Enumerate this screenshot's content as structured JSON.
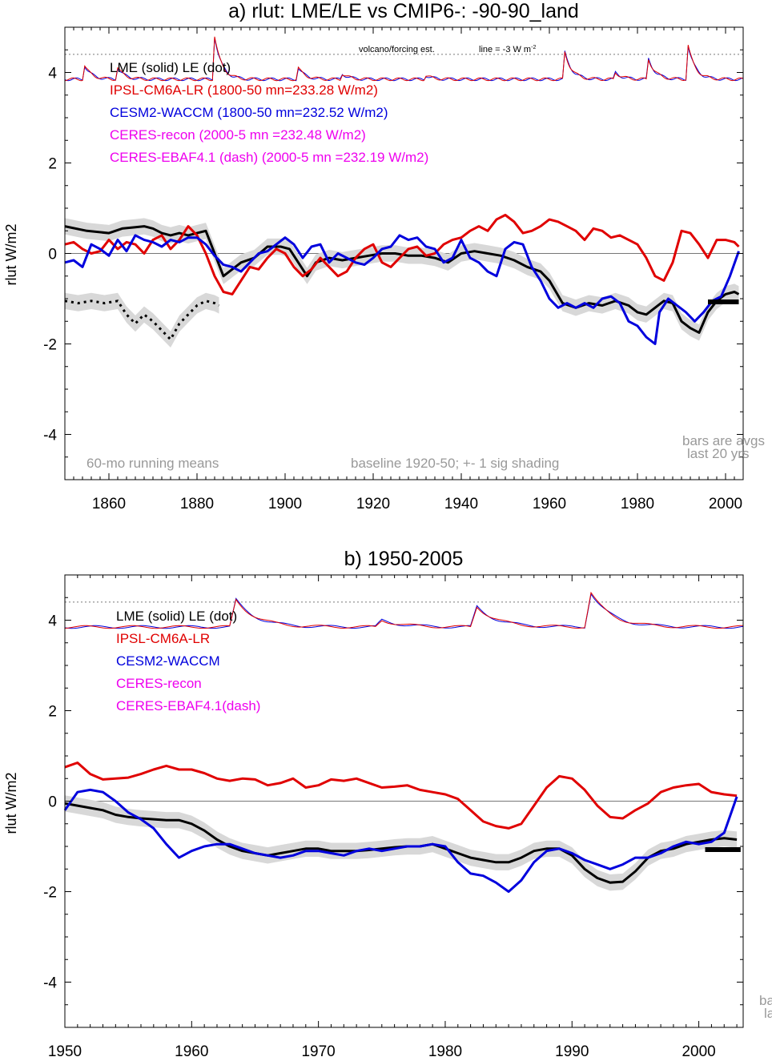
{
  "chart_data": [
    {
      "type": "line",
      "title": "a) rlut: LME/LE vs CMIP6-: -90-90_land",
      "ylabel": "rlut W/m2",
      "xlabel": "",
      "xlim": [
        1850,
        2004
      ],
      "ylim": [
        -5,
        5
      ],
      "xticks": [
        1860,
        1880,
        1900,
        1920,
        1940,
        1960,
        1980,
        2000
      ],
      "yticks": [
        -4,
        -2,
        0,
        2,
        4
      ],
      "legend": [
        {
          "text": "LME (solid)   LE (dot)",
          "color": "#000000"
        },
        {
          "text": "IPSL-CM6A-LR (1800-50 mn=233.28 W/m2)",
          "color": "#e00000"
        },
        {
          "text": "CESM2-WACCM (1800-50 mn=232.52 W/m2)",
          "color": "#0000dd"
        },
        {
          "text": "CERES-recon (2000-5 mn =232.48 W/m2)",
          "color": "#ee00ee"
        },
        {
          "text": "CERES-EBAF4.1 (dash) (2000-5 mn =232.19 W/m2)",
          "color": "#ee00ee"
        }
      ],
      "volcano_label": "volcano/forcing est.",
      "volcano_line_label": "line = -3 W m",
      "volcano_line_sup": "-2",
      "notes": {
        "left": "60-mo running means",
        "center": "baseline 1920-50; +- 1 sig shading",
        "bars1": "bars are avgs",
        "bars2": "last 20 yrs"
      },
      "bar": {
        "x": [
          1996,
          2003
        ],
        "y": -1.07
      },
      "series": [
        {
          "name": "LME (solid)",
          "color": "#000000",
          "x": [
            1850,
            1855,
            1860,
            1863,
            1866,
            1868,
            1870,
            1872,
            1874,
            1876,
            1878,
            1880,
            1882,
            1884,
            1886,
            1888,
            1890,
            1893,
            1896,
            1899,
            1901,
            1903,
            1905,
            1907,
            1910,
            1913,
            1916,
            1919,
            1922,
            1925,
            1928,
            1931,
            1934,
            1937,
            1940,
            1943,
            1946,
            1949,
            1952,
            1955,
            1958,
            1960,
            1963,
            1966,
            1969,
            1972,
            1975,
            1978,
            1980,
            1982,
            1984,
            1986,
            1988,
            1990,
            1992,
            1994,
            1996,
            1998,
            2000,
            2002,
            2003
          ],
          "y": [
            0.6,
            0.5,
            0.45,
            0.55,
            0.58,
            0.6,
            0.55,
            0.45,
            0.4,
            0.45,
            0.4,
            0.45,
            0.5,
            0.0,
            -0.5,
            -0.35,
            -0.2,
            -0.1,
            0.15,
            0.15,
            0.1,
            -0.2,
            -0.5,
            -0.2,
            -0.1,
            -0.15,
            -0.1,
            -0.05,
            0.0,
            0.0,
            -0.05,
            -0.05,
            -0.1,
            -0.2,
            0.0,
            0.05,
            0.0,
            -0.05,
            -0.15,
            -0.3,
            -0.4,
            -0.6,
            -1.1,
            -1.2,
            -1.1,
            -1.15,
            -1.05,
            -1.15,
            -1.3,
            -1.35,
            -1.2,
            -1.05,
            -1.1,
            -1.5,
            -1.65,
            -1.75,
            -1.3,
            -1.05,
            -0.9,
            -0.85,
            -0.9
          ]
        },
        {
          "name": "LE (dot)",
          "color": "#000000",
          "dot": true,
          "x": [
            1850,
            1853,
            1856,
            1859,
            1862,
            1864,
            1866,
            1868,
            1870,
            1872,
            1874,
            1876,
            1878,
            1880,
            1882,
            1884,
            1885
          ],
          "y": [
            -1.05,
            -1.1,
            -1.05,
            -1.1,
            -1.05,
            -1.35,
            -1.55,
            -1.35,
            -1.5,
            -1.7,
            -1.9,
            -1.55,
            -1.35,
            -1.15,
            -1.05,
            -1.1,
            -1.15
          ]
        },
        {
          "name": "IPSL-CM6A-LR",
          "color": "#e00000",
          "x": [
            1850,
            1852,
            1854,
            1856,
            1858,
            1860,
            1862,
            1864,
            1866,
            1868,
            1870,
            1872,
            1874,
            1876,
            1878,
            1880,
            1882,
            1884,
            1886,
            1888,
            1890,
            1892,
            1894,
            1896,
            1898,
            1900,
            1902,
            1904,
            1906,
            1908,
            1910,
            1912,
            1914,
            1916,
            1918,
            1920,
            1922,
            1924,
            1926,
            1928,
            1930,
            1932,
            1934,
            1936,
            1938,
            1940,
            1942,
            1944,
            1946,
            1948,
            1950,
            1952,
            1954,
            1956,
            1958,
            1960,
            1962,
            1964,
            1966,
            1968,
            1970,
            1972,
            1974,
            1976,
            1978,
            1980,
            1982,
            1984,
            1986,
            1988,
            1990,
            1992,
            1994,
            1996,
            1998,
            2000,
            2002,
            2003
          ],
          "y": [
            0.2,
            0.25,
            0.1,
            0.0,
            0.05,
            0.3,
            0.1,
            0.25,
            0.2,
            0.0,
            0.3,
            0.4,
            0.1,
            0.3,
            0.6,
            0.4,
            0.0,
            -0.5,
            -0.85,
            -0.9,
            -0.6,
            -0.3,
            -0.35,
            -0.1,
            0.1,
            0.0,
            -0.3,
            -0.5,
            -0.35,
            -0.1,
            -0.3,
            -0.5,
            -0.4,
            -0.1,
            0.1,
            0.2,
            -0.2,
            -0.3,
            -0.1,
            0.1,
            0.15,
            -0.05,
            0.0,
            0.2,
            0.3,
            0.35,
            0.5,
            0.6,
            0.5,
            0.75,
            0.85,
            0.7,
            0.45,
            0.5,
            0.6,
            0.75,
            0.7,
            0.6,
            0.5,
            0.3,
            0.55,
            0.5,
            0.35,
            0.4,
            0.3,
            0.2,
            -0.1,
            -0.5,
            -0.6,
            -0.2,
            0.5,
            0.45,
            0.2,
            -0.1,
            0.3,
            0.3,
            0.25,
            0.15
          ]
        },
        {
          "name": "CESM2-WACCM",
          "color": "#0000dd",
          "x": [
            1850,
            1852,
            1854,
            1856,
            1858,
            1860,
            1862,
            1864,
            1866,
            1868,
            1870,
            1872,
            1874,
            1876,
            1878,
            1880,
            1882,
            1884,
            1886,
            1888,
            1890,
            1892,
            1894,
            1896,
            1898,
            1900,
            1902,
            1904,
            1906,
            1908,
            1910,
            1912,
            1914,
            1916,
            1918,
            1920,
            1922,
            1924,
            1926,
            1928,
            1930,
            1932,
            1934,
            1936,
            1938,
            1940,
            1942,
            1944,
            1946,
            1948,
            1950,
            1952,
            1954,
            1956,
            1958,
            1960,
            1962,
            1964,
            1966,
            1968,
            1970,
            1972,
            1974,
            1976,
            1978,
            1980,
            1982,
            1984,
            1985,
            1987,
            1989,
            1991,
            1993,
            1995,
            1997,
            1999,
            2001,
            2003
          ],
          "y": [
            -0.2,
            -0.15,
            -0.3,
            0.2,
            0.1,
            -0.05,
            0.3,
            0.05,
            0.4,
            0.3,
            0.25,
            0.15,
            0.3,
            0.25,
            0.35,
            0.35,
            0.2,
            -0.05,
            -0.25,
            -0.3,
            -0.4,
            -0.2,
            0.0,
            0.05,
            0.2,
            0.35,
            0.2,
            -0.1,
            0.15,
            0.2,
            -0.2,
            0.0,
            -0.1,
            -0.2,
            -0.25,
            -0.1,
            0.1,
            0.15,
            0.4,
            0.3,
            0.35,
            0.15,
            0.1,
            -0.2,
            -0.1,
            0.3,
            -0.1,
            -0.2,
            -0.4,
            -0.5,
            0.1,
            0.25,
            0.2,
            -0.3,
            -0.6,
            -1.0,
            -1.2,
            -1.1,
            -1.2,
            -1.1,
            -1.2,
            -1.0,
            -0.95,
            -1.1,
            -1.5,
            -1.6,
            -1.85,
            -2.0,
            -1.3,
            -1.0,
            -1.15,
            -1.3,
            -1.5,
            -1.3,
            -1.05,
            -0.95,
            -0.5,
            0.05
          ]
        }
      ],
      "volcano": [
        {
          "name": "CESM2-WACCM forcing",
          "color": "#0000dd"
        },
        {
          "name": "IPSL-CM6A-LR forcing",
          "color": "#e00000"
        }
      ]
    },
    {
      "type": "line",
      "title": "b) 1950-2005",
      "ylabel": "rlut W/m2",
      "xlabel": "",
      "xlim": [
        1950,
        2003.5
      ],
      "ylim": [
        -5,
        5
      ],
      "xticks": [
        1950,
        1960,
        1970,
        1980,
        1990,
        2000
      ],
      "yticks": [
        -4,
        -2,
        0,
        2,
        4
      ],
      "legend": [
        {
          "text": "LME (solid)       LE (dot)",
          "color": "#000000"
        },
        {
          "text": "IPSL-CM6A-LR",
          "color": "#e00000"
        },
        {
          "text": "CESM2-WACCM",
          "color": "#0000dd"
        },
        {
          "text": "CERES-recon",
          "color": "#ee00ee"
        },
        {
          "text": "CERES-EBAF4.1(dash)",
          "color": "#ee00ee"
        }
      ],
      "notes": {
        "bars1": "ba",
        "bars2": "la"
      },
      "bar": {
        "x": [
          2000.5,
          2003.3
        ],
        "y": -1.07
      },
      "series": [
        {
          "name": "LME (solid)",
          "color": "#000000",
          "x": [
            1950,
            1951,
            1952,
            1953,
            1954,
            1955,
            1956,
            1957,
            1958,
            1959,
            1960,
            1961,
            1962,
            1963,
            1964,
            1965,
            1966,
            1967,
            1968,
            1969,
            1970,
            1971,
            1972,
            1973,
            1974,
            1975,
            1976,
            1977,
            1978,
            1979,
            1980,
            1981,
            1982,
            1983,
            1984,
            1985,
            1986,
            1987,
            1988,
            1989,
            1990,
            1991,
            1992,
            1993,
            1994,
            1995,
            1996,
            1997,
            1998,
            1999,
            2000,
            2001,
            2002,
            2003
          ],
          "y": [
            -0.05,
            -0.1,
            -0.15,
            -0.2,
            -0.3,
            -0.35,
            -0.38,
            -0.4,
            -0.42,
            -0.42,
            -0.5,
            -0.65,
            -0.85,
            -1.0,
            -1.1,
            -1.15,
            -1.2,
            -1.15,
            -1.1,
            -1.05,
            -1.05,
            -1.1,
            -1.1,
            -1.1,
            -1.08,
            -1.05,
            -1.02,
            -1.0,
            -1.0,
            -0.95,
            -1.05,
            -1.15,
            -1.25,
            -1.3,
            -1.35,
            -1.35,
            -1.25,
            -1.1,
            -1.05,
            -1.05,
            -1.2,
            -1.5,
            -1.7,
            -1.8,
            -1.78,
            -1.55,
            -1.25,
            -1.1,
            -1.05,
            -0.95,
            -0.9,
            -0.85,
            -0.82,
            -0.85
          ]
        },
        {
          "name": "IPSL-CM6A-LR",
          "color": "#e00000",
          "x": [
            1950,
            1951,
            1952,
            1953,
            1954,
            1955,
            1956,
            1957,
            1958,
            1959,
            1960,
            1961,
            1962,
            1963,
            1964,
            1965,
            1966,
            1967,
            1968,
            1969,
            1970,
            1971,
            1972,
            1973,
            1974,
            1975,
            1976,
            1977,
            1978,
            1979,
            1980,
            1981,
            1982,
            1983,
            1984,
            1985,
            1986,
            1987,
            1988,
            1989,
            1990,
            1991,
            1992,
            1993,
            1994,
            1995,
            1996,
            1997,
            1998,
            1999,
            2000,
            2001,
            2002,
            2003
          ],
          "y": [
            0.75,
            0.85,
            0.6,
            0.48,
            0.5,
            0.52,
            0.6,
            0.7,
            0.78,
            0.7,
            0.7,
            0.62,
            0.5,
            0.45,
            0.5,
            0.48,
            0.35,
            0.4,
            0.5,
            0.3,
            0.35,
            0.48,
            0.45,
            0.5,
            0.4,
            0.3,
            0.32,
            0.35,
            0.25,
            0.2,
            0.15,
            0.05,
            -0.2,
            -0.45,
            -0.55,
            -0.6,
            -0.5,
            -0.1,
            0.3,
            0.55,
            0.5,
            0.25,
            -0.1,
            -0.35,
            -0.38,
            -0.2,
            -0.05,
            0.2,
            0.3,
            0.35,
            0.38,
            0.2,
            0.15,
            0.12
          ]
        },
        {
          "name": "CESM2-WACCM",
          "color": "#0000dd",
          "x": [
            1950,
            1951,
            1952,
            1953,
            1954,
            1955,
            1956,
            1957,
            1958,
            1959,
            1960,
            1961,
            1962,
            1963,
            1964,
            1965,
            1966,
            1967,
            1968,
            1969,
            1970,
            1971,
            1972,
            1973,
            1974,
            1975,
            1976,
            1977,
            1978,
            1979,
            1980,
            1981,
            1982,
            1983,
            1984,
            1985,
            1986,
            1987,
            1988,
            1989,
            1990,
            1991,
            1992,
            1993,
            1994,
            1995,
            1996,
            1997,
            1998,
            1999,
            2000,
            2001,
            2002,
            2003
          ],
          "y": [
            -0.2,
            0.2,
            0.25,
            0.2,
            0.0,
            -0.25,
            -0.4,
            -0.6,
            -0.95,
            -1.25,
            -1.1,
            -1.0,
            -0.95,
            -0.95,
            -1.05,
            -1.15,
            -1.2,
            -1.25,
            -1.2,
            -1.1,
            -1.1,
            -1.15,
            -1.2,
            -1.1,
            -1.05,
            -1.1,
            -1.05,
            -1.0,
            -1.0,
            -0.95,
            -1.0,
            -1.35,
            -1.6,
            -1.65,
            -1.8,
            -2.0,
            -1.75,
            -1.35,
            -1.1,
            -1.05,
            -1.15,
            -1.3,
            -1.4,
            -1.5,
            -1.4,
            -1.25,
            -1.25,
            -1.15,
            -1.0,
            -0.9,
            -0.95,
            -0.9,
            -0.7,
            0.1
          ]
        }
      ]
    }
  ]
}
